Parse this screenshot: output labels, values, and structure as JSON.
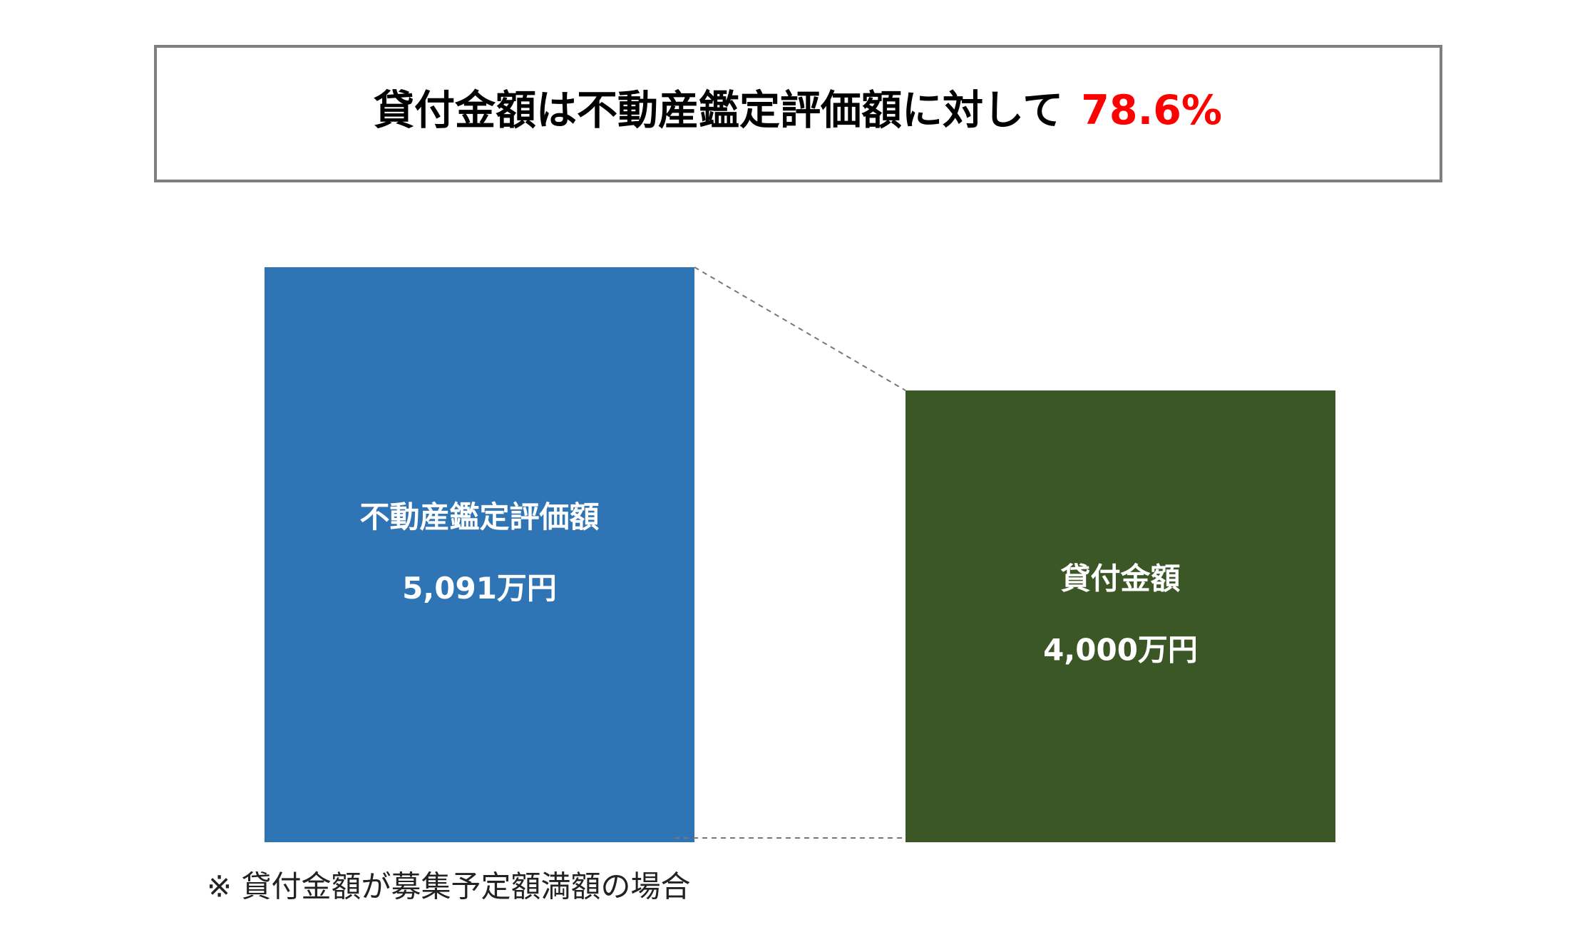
{
  "chart_data": {
    "type": "bar",
    "title": "貸付金額は不動産鑑定評価額に対して",
    "title_highlight": "78.6%",
    "categories": [
      "不動産鑑定評価額",
      "貸付金額"
    ],
    "values": [
      5091,
      4000
    ],
    "value_labels": [
      "5,091万円",
      "4,000万円"
    ],
    "colors": [
      "#2f74b5",
      "#3b5726"
    ],
    "highlight_color": "#ff0000",
    "note": "※ 貸付金額が募集予定額満額の場合"
  }
}
